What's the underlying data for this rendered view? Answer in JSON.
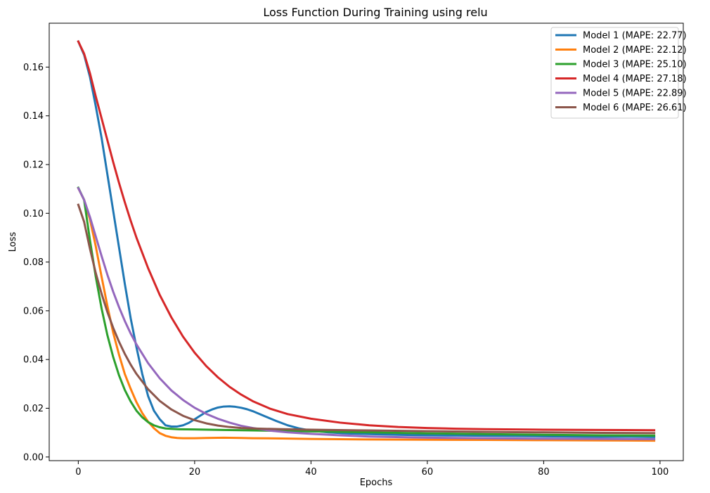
{
  "chart_data": {
    "type": "line",
    "title": "Loss Function During Training using relu",
    "xlabel": "Epochs",
    "ylabel": "Loss",
    "xlim": [
      -5,
      104
    ],
    "ylim": [
      -0.0015,
      0.178
    ],
    "xticks": [
      0,
      20,
      40,
      60,
      80,
      100
    ],
    "yticks": [
      0.0,
      0.02,
      0.04,
      0.06,
      0.08,
      0.1,
      0.12,
      0.14,
      0.16
    ],
    "ytick_labels": [
      "0.00",
      "0.02",
      "0.04",
      "0.06",
      "0.08",
      "0.10",
      "0.12",
      "0.14",
      "0.16"
    ],
    "grid": false,
    "legend_position": "top-right",
    "series": [
      {
        "name": "Model 1 (MAPE: 22.77)",
        "color": "#1f77b4",
        "points": [
          [
            0,
            0.1705
          ],
          [
            1,
            0.165
          ],
          [
            2,
            0.156
          ],
          [
            3,
            0.144
          ],
          [
            4,
            0.131
          ],
          [
            5,
            0.116
          ],
          [
            6,
            0.101
          ],
          [
            7,
            0.086
          ],
          [
            8,
            0.071
          ],
          [
            9,
            0.057
          ],
          [
            10,
            0.045
          ],
          [
            11,
            0.034
          ],
          [
            12,
            0.025
          ],
          [
            13,
            0.019
          ],
          [
            14,
            0.0155
          ],
          [
            15,
            0.013
          ],
          [
            16,
            0.0125
          ],
          [
            17,
            0.0125
          ],
          [
            18,
            0.013
          ],
          [
            19,
            0.014
          ],
          [
            20,
            0.0155
          ],
          [
            21,
            0.017
          ],
          [
            22,
            0.0185
          ],
          [
            23,
            0.0195
          ],
          [
            24,
            0.0203
          ],
          [
            25,
            0.0207
          ],
          [
            26,
            0.0208
          ],
          [
            27,
            0.0206
          ],
          [
            28,
            0.0202
          ],
          [
            29,
            0.0196
          ],
          [
            30,
            0.0188
          ],
          [
            32,
            0.0168
          ],
          [
            34,
            0.0148
          ],
          [
            36,
            0.013
          ],
          [
            38,
            0.0117
          ],
          [
            40,
            0.0108
          ],
          [
            43,
            0.0101
          ],
          [
            46,
            0.0097
          ],
          [
            50,
            0.0094
          ],
          [
            55,
            0.0091
          ],
          [
            60,
            0.0089
          ],
          [
            65,
            0.0088
          ],
          [
            70,
            0.0087
          ],
          [
            75,
            0.0086
          ],
          [
            80,
            0.0085
          ],
          [
            85,
            0.0084
          ],
          [
            90,
            0.0083
          ],
          [
            95,
            0.0083
          ],
          [
            99,
            0.0082
          ]
        ]
      },
      {
        "name": "Model 2 (MAPE: 22.12)",
        "color": "#ff7f0e",
        "points": [
          [
            0,
            0.1103
          ],
          [
            1,
            0.1055
          ],
          [
            2,
            0.0975
          ],
          [
            3,
            0.0865
          ],
          [
            4,
            0.074
          ],
          [
            5,
            0.062
          ],
          [
            6,
            0.051
          ],
          [
            7,
            0.042
          ],
          [
            8,
            0.034
          ],
          [
            9,
            0.028
          ],
          [
            10,
            0.0225
          ],
          [
            11,
            0.018
          ],
          [
            12,
            0.0145
          ],
          [
            13,
            0.0118
          ],
          [
            14,
            0.0098
          ],
          [
            15,
            0.0087
          ],
          [
            16,
            0.0081
          ],
          [
            17,
            0.0078
          ],
          [
            18,
            0.0077
          ],
          [
            20,
            0.0077
          ],
          [
            22,
            0.0078
          ],
          [
            25,
            0.0079
          ],
          [
            28,
            0.0078
          ],
          [
            30,
            0.0077
          ],
          [
            35,
            0.0076
          ],
          [
            40,
            0.0074
          ],
          [
            50,
            0.0072
          ],
          [
            60,
            0.0071
          ],
          [
            70,
            0.007
          ],
          [
            80,
            0.0069
          ],
          [
            90,
            0.0068
          ],
          [
            99,
            0.0067
          ]
        ]
      },
      {
        "name": "Model 3 (MAPE: 25.10)",
        "color": "#2ca02c",
        "points": [
          [
            0,
            0.1105
          ],
          [
            1,
            0.1055
          ],
          [
            2,
            0.089
          ],
          [
            3,
            0.074
          ],
          [
            4,
            0.061
          ],
          [
            5,
            0.05
          ],
          [
            6,
            0.041
          ],
          [
            7,
            0.0335
          ],
          [
            8,
            0.0275
          ],
          [
            9,
            0.0228
          ],
          [
            10,
            0.019
          ],
          [
            11,
            0.0163
          ],
          [
            12,
            0.0143
          ],
          [
            13,
            0.013
          ],
          [
            14,
            0.0122
          ],
          [
            15,
            0.0117
          ],
          [
            17,
            0.0114
          ],
          [
            20,
            0.0113
          ],
          [
            25,
            0.0111
          ],
          [
            30,
            0.0109
          ],
          [
            35,
            0.0107
          ],
          [
            40,
            0.0105
          ],
          [
            50,
            0.0101
          ],
          [
            60,
            0.0097
          ],
          [
            70,
            0.0094
          ],
          [
            80,
            0.0091
          ],
          [
            90,
            0.0089
          ],
          [
            99,
            0.0088
          ]
        ]
      },
      {
        "name": "Model 4 (MAPE: 27.18)",
        "color": "#d62728",
        "points": [
          [
            0,
            0.1705
          ],
          [
            1,
            0.1655
          ],
          [
            2,
            0.1575
          ],
          [
            3,
            0.148
          ],
          [
            4,
            0.139
          ],
          [
            5,
            0.13
          ],
          [
            6,
            0.121
          ],
          [
            7,
            0.1125
          ],
          [
            8,
            0.1045
          ],
          [
            9,
            0.097
          ],
          [
            10,
            0.09
          ],
          [
            12,
            0.0775
          ],
          [
            14,
            0.0665
          ],
          [
            16,
            0.0573
          ],
          [
            18,
            0.0494
          ],
          [
            20,
            0.0428
          ],
          [
            22,
            0.0373
          ],
          [
            24,
            0.0327
          ],
          [
            26,
            0.0288
          ],
          [
            28,
            0.0256
          ],
          [
            30,
            0.0229
          ],
          [
            33,
            0.0198
          ],
          [
            36,
            0.0176
          ],
          [
            40,
            0.0157
          ],
          [
            45,
            0.0141
          ],
          [
            50,
            0.013
          ],
          [
            55,
            0.0123
          ],
          [
            60,
            0.0119
          ],
          [
            65,
            0.0116
          ],
          [
            70,
            0.0114
          ],
          [
            80,
            0.0112
          ],
          [
            90,
            0.0111
          ],
          [
            99,
            0.011
          ]
        ]
      },
      {
        "name": "Model 5 (MAPE: 22.89)",
        "color": "#9467bd",
        "points": [
          [
            0,
            0.1103
          ],
          [
            1,
            0.1055
          ],
          [
            2,
            0.0985
          ],
          [
            3,
            0.0905
          ],
          [
            4,
            0.0825
          ],
          [
            5,
            0.0748
          ],
          [
            6,
            0.0678
          ],
          [
            7,
            0.0615
          ],
          [
            8,
            0.0558
          ],
          [
            9,
            0.0507
          ],
          [
            10,
            0.0462
          ],
          [
            12,
            0.0385
          ],
          [
            14,
            0.0323
          ],
          [
            16,
            0.0273
          ],
          [
            18,
            0.0234
          ],
          [
            20,
            0.0202
          ],
          [
            22,
            0.0177
          ],
          [
            24,
            0.0157
          ],
          [
            26,
            0.0141
          ],
          [
            28,
            0.0128
          ],
          [
            30,
            0.0119
          ],
          [
            33,
            0.0108
          ],
          [
            36,
            0.0101
          ],
          [
            40,
            0.0095
          ],
          [
            45,
            0.0089
          ],
          [
            50,
            0.0084
          ],
          [
            60,
            0.0079
          ],
          [
            70,
            0.0077
          ],
          [
            80,
            0.0075
          ],
          [
            90,
            0.0074
          ],
          [
            99,
            0.0073
          ]
        ]
      },
      {
        "name": "Model 6 (MAPE: 26.61)",
        "color": "#8c564b",
        "points": [
          [
            0,
            0.1035
          ],
          [
            1,
            0.0965
          ],
          [
            2,
            0.0855
          ],
          [
            3,
            0.0755
          ],
          [
            4,
            0.067
          ],
          [
            5,
            0.0595
          ],
          [
            6,
            0.053
          ],
          [
            7,
            0.0473
          ],
          [
            8,
            0.0423
          ],
          [
            9,
            0.0379
          ],
          [
            10,
            0.0341
          ],
          [
            12,
            0.0278
          ],
          [
            14,
            0.023
          ],
          [
            16,
            0.0195
          ],
          [
            18,
            0.0169
          ],
          [
            20,
            0.0151
          ],
          [
            22,
            0.0138
          ],
          [
            24,
            0.0129
          ],
          [
            26,
            0.0123
          ],
          [
            28,
            0.0119
          ],
          [
            30,
            0.0117
          ],
          [
            35,
            0.0114
          ],
          [
            40,
            0.0112
          ],
          [
            50,
            0.0109
          ],
          [
            60,
            0.0106
          ],
          [
            70,
            0.0103
          ],
          [
            80,
            0.0101
          ],
          [
            90,
            0.0099
          ],
          [
            99,
            0.0098
          ]
        ]
      }
    ]
  }
}
